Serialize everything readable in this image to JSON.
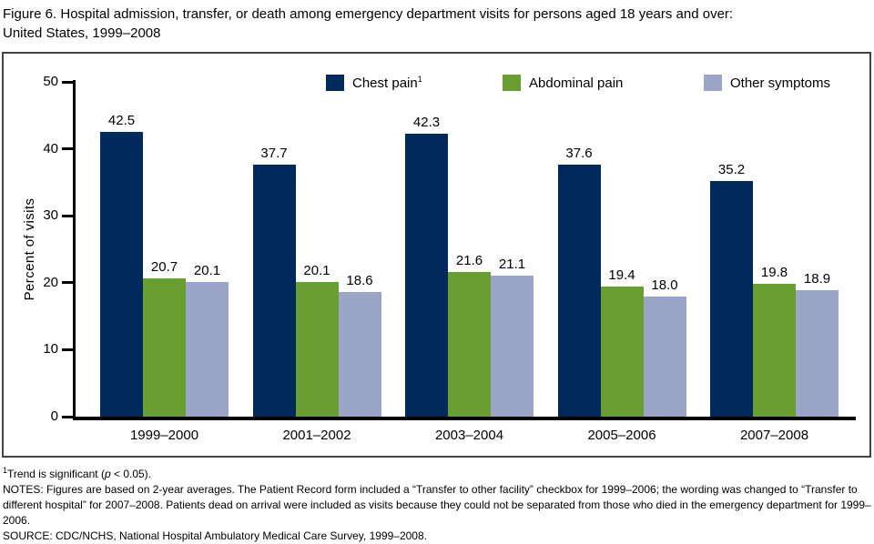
{
  "title": {
    "line1": "Figure 6. Hospital admission, transfer, or death among emergency department visits for persons aged 18 years and over:",
    "line2": "United States, 1999–2008"
  },
  "chart_data": {
    "type": "bar",
    "title": "Figure 6. Hospital admission, transfer, or death among emergency department visits for persons aged 18 years and over: United States, 1999–2008",
    "categories": [
      "1999–2000",
      "2001–2002",
      "2003–2004",
      "2005–2006",
      "2007–2008"
    ],
    "series": [
      {
        "name": "Chest pain",
        "footnote_marker": "1",
        "color": "#002a5c",
        "values": [
          42.5,
          37.7,
          42.3,
          37.6,
          35.2
        ]
      },
      {
        "name": "Abdominal pain",
        "footnote_marker": "",
        "color": "#699e31",
        "values": [
          20.7,
          20.1,
          21.6,
          19.4,
          19.8
        ]
      },
      {
        "name": "Other symptoms",
        "footnote_marker": "",
        "color": "#9aa5c7",
        "values": [
          20.1,
          18.6,
          21.1,
          18.0,
          18.9
        ]
      }
    ],
    "xlabel": "",
    "ylabel": "Percent of visits",
    "ylim": [
      0,
      50
    ],
    "yticks": [
      0,
      10,
      20,
      30,
      40,
      50
    ],
    "grid": false,
    "legend_position": "top",
    "value_labels": true
  },
  "footnotes": {
    "trend": {
      "marker": "1",
      "text_before_p": "Trend is significant (",
      "p": "p",
      "text_after_p": " < 0.05)."
    },
    "notes": "NOTES: Figures are based on 2-year averages. The Patient Record form included a “Transfer to other facility” checkbox for 1999–2006; the wording was changed to “Transfer to different hospital” for 2007–2008. Patients dead on arrival were included as visits because they could not be separated from those who died in the emergency department for 1999–2006.",
    "source": "SOURCE: CDC/NCHS, National Hospital Ambulatory Medical Care Survey, 1999–2008."
  }
}
